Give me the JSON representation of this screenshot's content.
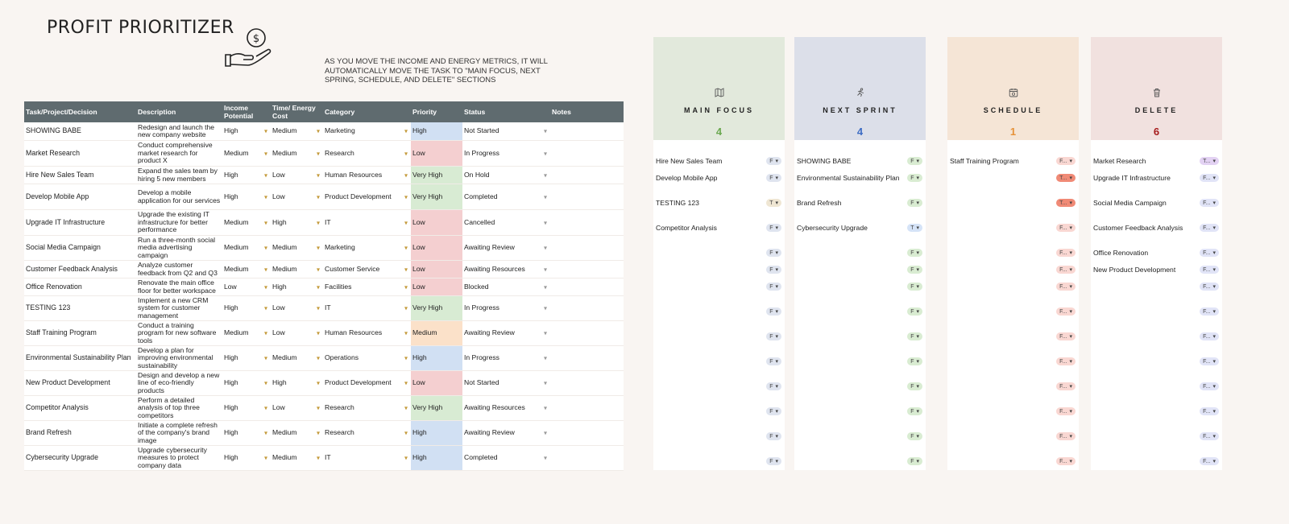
{
  "header": {
    "title": "PROFIT PRIORITIZER",
    "note": "AS YOU MOVE THE INCOME AND ENERGY METRICS, IT WILL AUTOMATICALLY MOVE THE TASK TO \"MAIN FOCUS, NEXT SPRING, SCHEDULE, AND DELETE\" SECTIONS"
  },
  "table": {
    "columns": [
      "Task/Project/Decision",
      "Description",
      "Income Potential",
      "Time/ Energy Cost",
      "Category",
      "Priority",
      "Status",
      "Notes"
    ],
    "rows": [
      {
        "task": "SHOWING BABE",
        "desc": "Redesign and launch the new company website",
        "income": "High",
        "time": "Medium",
        "category": "Marketing",
        "priority": "High",
        "status": "Not Started"
      },
      {
        "task": "Market Research",
        "desc": "Conduct comprehensive market research for product X",
        "income": "Medium",
        "time": "Medium",
        "category": "Research",
        "priority": "Low",
        "status": "In Progress"
      },
      {
        "task": "Hire New Sales Team",
        "desc": "Expand the sales team by hiring 5 new members",
        "income": "High",
        "time": "Low",
        "category": "Human Resources",
        "priority": "Very High",
        "status": "On Hold"
      },
      {
        "task": "Develop Mobile App",
        "desc": "Develop a mobile application for our services",
        "income": "High",
        "time": "Low",
        "category": "Product Development",
        "priority": "Very High",
        "status": "Completed"
      },
      {
        "task": "Upgrade IT Infrastructure",
        "desc": "Upgrade the existing IT infrastructure for better performance",
        "income": "Medium",
        "time": "High",
        "category": "IT",
        "priority": "Low",
        "status": "Cancelled"
      },
      {
        "task": "Social Media Campaign",
        "desc": "Run a three-month social media advertising campaign",
        "income": "Medium",
        "time": "Medium",
        "category": "Marketing",
        "priority": "Low",
        "status": "Awaiting Review"
      },
      {
        "task": "Customer Feedback Analysis",
        "desc": "Analyze customer feedback from Q2 and Q3",
        "income": "Medium",
        "time": "Medium",
        "category": "Customer Service",
        "priority": "Low",
        "status": "Awaiting Resources"
      },
      {
        "task": "Office Renovation",
        "desc": "Renovate the main office floor for better workspace",
        "income": "Low",
        "time": "High",
        "category": "Facilities",
        "priority": "Low",
        "status": "Blocked"
      },
      {
        "task": "TESTING 123",
        "desc": "Implement a new CRM system for customer management",
        "income": "High",
        "time": "Low",
        "category": "IT",
        "priority": "Very High",
        "status": "In Progress"
      },
      {
        "task": "Staff Training Program",
        "desc": "Conduct a training program for new software tools",
        "income": "Medium",
        "time": "Low",
        "category": "Human Resources",
        "priority": "Medium",
        "status": "Awaiting Review"
      },
      {
        "task": "Environmental Sustainability Plan",
        "desc": "Develop a plan for improving environmental sustainability",
        "income": "High",
        "time": "Medium",
        "category": "Operations",
        "priority": "High",
        "status": "In Progress"
      },
      {
        "task": "New Product Development",
        "desc": "Design and develop a new line of eco-friendly products",
        "income": "High",
        "time": "High",
        "category": "Product Development",
        "priority": "Low",
        "status": "Not Started"
      },
      {
        "task": "Competitor Analysis",
        "desc": "Perform a detailed analysis of top three competitors",
        "income": "High",
        "time": "Low",
        "category": "Research",
        "priority": "Very High",
        "status": "Awaiting Resources"
      },
      {
        "task": "Brand Refresh",
        "desc": "Initiate a complete refresh of the company's brand image",
        "income": "High",
        "time": "Medium",
        "category": "Research",
        "priority": "High",
        "status": "Awaiting Review"
      },
      {
        "task": "Cybersecurity Upgrade",
        "desc": "Upgrade cybersecurity measures to protect company data",
        "income": "High",
        "time": "Medium",
        "category": "IT",
        "priority": "High",
        "status": "Completed"
      }
    ]
  },
  "boards": [
    {
      "name": "MAIN FOCUS",
      "count": "4",
      "head_color": "#e2e9dc",
      "count_color": "#6aa84f",
      "pill_color": "#dfe4ef",
      "icon": "map-icon",
      "items": [
        {
          "label": "Hire New Sales Team",
          "pill": "F"
        },
        {
          "label": "Develop Mobile App",
          "pill": "F"
        },
        {
          "label": "TESTING 123",
          "pill": "T",
          "pill_color": "#efe6d3"
        },
        {
          "label": "Competitor Analysis",
          "pill": "F"
        },
        {
          "label": "",
          "pill": "F"
        },
        {
          "label": "",
          "pill": "F"
        },
        {
          "label": "",
          "pill": "F"
        },
        {
          "label": "",
          "pill": "F"
        },
        {
          "label": "",
          "pill": "F"
        },
        {
          "label": "",
          "pill": "F"
        },
        {
          "label": "",
          "pill": "F"
        },
        {
          "label": "",
          "pill": "F"
        },
        {
          "label": "",
          "pill": "F"
        },
        {
          "label": "",
          "pill": "F"
        }
      ]
    },
    {
      "name": "NEXT SPRINT",
      "count": "4",
      "head_color": "#dcdfe9",
      "count_color": "#3d6cc4",
      "pill_color": "#d9ecd2",
      "icon": "running-icon",
      "items": [
        {
          "label": "SHOWING BABE",
          "pill": "F"
        },
        {
          "label": "Environmental Sustainability Plan",
          "pill": "F"
        },
        {
          "label": "Brand Refresh",
          "pill": "F"
        },
        {
          "label": "Cybersecurity Upgrade",
          "pill": "T",
          "pill_color": "#d5e3f7"
        },
        {
          "label": "",
          "pill": "F"
        },
        {
          "label": "",
          "pill": "F"
        },
        {
          "label": "",
          "pill": "F"
        },
        {
          "label": "",
          "pill": "F"
        },
        {
          "label": "",
          "pill": "F"
        },
        {
          "label": "",
          "pill": "F"
        },
        {
          "label": "",
          "pill": "F"
        },
        {
          "label": "",
          "pill": "F"
        },
        {
          "label": "",
          "pill": "F"
        },
        {
          "label": "",
          "pill": "F"
        }
      ]
    },
    {
      "name": "SCHEDULE",
      "count": "1",
      "head_color": "#f5e5d6",
      "count_color": "#e69138",
      "pill_color": "#f9d7d2",
      "icon": "calendar-icon",
      "items": [
        {
          "label": "Staff Training Program",
          "pill": "F..."
        },
        {
          "label": "",
          "pill": "T...",
          "pill_color": "#f08a76"
        },
        {
          "label": "",
          "pill": "T...",
          "pill_color": "#f08a76"
        },
        {
          "label": "",
          "pill": "F..."
        },
        {
          "label": "",
          "pill": "F..."
        },
        {
          "label": "",
          "pill": "F..."
        },
        {
          "label": "",
          "pill": "F..."
        },
        {
          "label": "",
          "pill": "F..."
        },
        {
          "label": "",
          "pill": "F..."
        },
        {
          "label": "",
          "pill": "F..."
        },
        {
          "label": "",
          "pill": "F..."
        },
        {
          "label": "",
          "pill": "F..."
        },
        {
          "label": "",
          "pill": "F..."
        },
        {
          "label": "",
          "pill": "F..."
        }
      ]
    },
    {
      "name": "DELETE",
      "count": "6",
      "head_color": "#f1e1df",
      "count_color": "#a61c1c",
      "pill_color": "#e1e4f7",
      "icon": "trash-icon",
      "items": [
        {
          "label": "Market Research",
          "pill": "T...",
          "pill_color": "#e3d2f3"
        },
        {
          "label": "Upgrade IT Infrastructure",
          "pill": "F..."
        },
        {
          "label": "Social Media Campaign",
          "pill": "F..."
        },
        {
          "label": "Customer Feedback Analysis",
          "pill": "F..."
        },
        {
          "label": "Office Renovation",
          "pill": "F..."
        },
        {
          "label": "New Product Development",
          "pill": "F..."
        },
        {
          "label": "",
          "pill": "F..."
        },
        {
          "label": "",
          "pill": "F..."
        },
        {
          "label": "",
          "pill": "F..."
        },
        {
          "label": "",
          "pill": "F..."
        },
        {
          "label": "",
          "pill": "F..."
        },
        {
          "label": "",
          "pill": "F..."
        },
        {
          "label": "",
          "pill": "F..."
        },
        {
          "label": "",
          "pill": "F..."
        }
      ]
    }
  ]
}
